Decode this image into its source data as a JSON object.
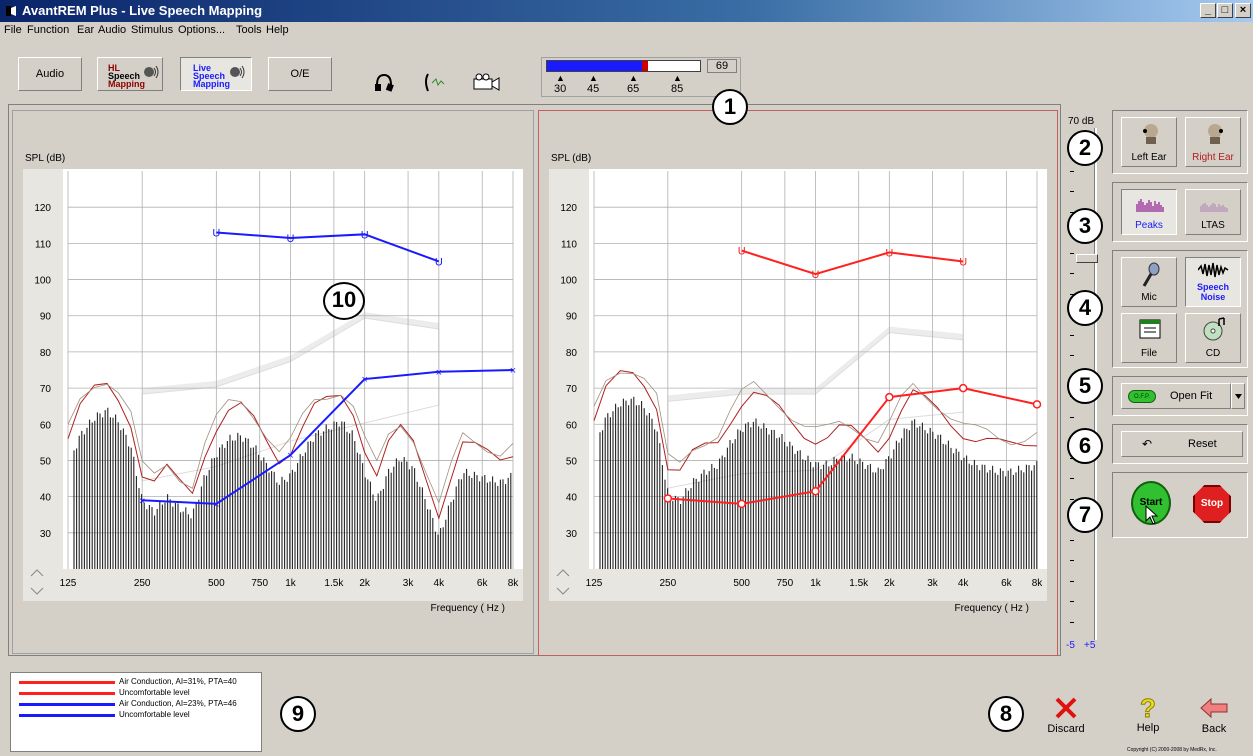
{
  "window": {
    "title": "AvantREM Plus - Live Speech Mapping",
    "btn_min": "_",
    "btn_max": "□",
    "btn_close": "×"
  },
  "menu": [
    "File",
    "Function",
    "Ear",
    "Audio",
    "Stimulus",
    "Options...",
    "Tools",
    "Help"
  ],
  "toolbar": {
    "audio": "Audio",
    "hl_a": "HL",
    "hl_b": "Speech",
    "hl_c": "Mapping",
    "live_a": "Live",
    "live_b": "Speech",
    "live_c": "Mapping",
    "oe": "O/E",
    "level_meter": {
      "value": "69",
      "fill_fraction": 0.62,
      "ticks": [
        "30",
        "45",
        "65",
        "85"
      ]
    }
  },
  "callouts": [
    "1",
    "2",
    "3",
    "4",
    "5",
    "6",
    "7",
    "8",
    "9",
    "10"
  ],
  "chart_data": [
    {
      "type": "line",
      "ylabel": "SPL (dB)",
      "xlabel": "Frequency ( Hz )",
      "x_ticks": [
        "125",
        "250",
        "500",
        "750",
        "1k",
        "1.5k",
        "2k",
        "3k",
        "4k",
        "6k",
        "8k"
      ],
      "y_ticks": [
        "120",
        "110",
        "100",
        "90",
        "80",
        "70",
        "60",
        "50",
        "40",
        "30"
      ],
      "ylim": [
        20,
        130
      ],
      "series": [
        {
          "color": "#1a1aff",
          "marker": "U",
          "x": [
            500,
            1000,
            2000,
            4000
          ],
          "y": [
            113,
            111.5,
            112.5,
            105
          ]
        },
        {
          "color": "#1a1aff",
          "marker": "x",
          "x": [
            250,
            500,
            1000,
            2000,
            4000,
            8000
          ],
          "y": [
            39,
            38,
            51.5,
            72.5,
            74.5,
            75
          ]
        }
      ],
      "speech_envelope": {
        "x": [
          250,
          500,
          1000,
          2000,
          4000
        ],
        "upper": [
          70,
          72,
          79,
          91,
          88
        ],
        "lower": [
          46,
          50,
          57,
          62,
          67
        ]
      },
      "spectrum_peaks": [
        [
          125,
          50
        ],
        [
          140,
          58
        ],
        [
          160,
          63
        ],
        [
          180,
          65
        ],
        [
          200,
          62
        ],
        [
          225,
          55
        ],
        [
          250,
          40
        ],
        [
          280,
          37
        ],
        [
          315,
          41
        ],
        [
          355,
          38
        ],
        [
          400,
          36
        ],
        [
          450,
          47
        ],
        [
          500,
          53
        ],
        [
          560,
          57
        ],
        [
          630,
          58
        ],
        [
          710,
          55
        ],
        [
          800,
          50
        ],
        [
          900,
          45
        ],
        [
          1000,
          47
        ],
        [
          1120,
          53
        ],
        [
          1250,
          58
        ],
        [
          1400,
          60
        ],
        [
          1600,
          62
        ],
        [
          1800,
          58
        ],
        [
          2000,
          48
        ],
        [
          2240,
          40
        ],
        [
          2500,
          48
        ],
        [
          2800,
          52
        ],
        [
          3150,
          49
        ],
        [
          3550,
          40
        ],
        [
          4000,
          30
        ],
        [
          4500,
          40
        ],
        [
          5000,
          48
        ],
        [
          5600,
          47
        ],
        [
          6300,
          46
        ],
        [
          7100,
          45
        ],
        [
          8000,
          47
        ]
      ]
    },
    {
      "type": "line",
      "ylabel": "SPL (dB)",
      "xlabel": "Frequency ( Hz )",
      "x_ticks": [
        "125",
        "250",
        "500",
        "750",
        "1k",
        "1.5k",
        "2k",
        "3k",
        "4k",
        "6k",
        "8k"
      ],
      "y_ticks": [
        "120",
        "110",
        "100",
        "90",
        "80",
        "70",
        "60",
        "50",
        "40",
        "30"
      ],
      "ylim": [
        20,
        130
      ],
      "series": [
        {
          "color": "#ff2020",
          "marker": "U",
          "x": [
            500,
            1000,
            2000,
            4000
          ],
          "y": [
            108,
            101.5,
            107.5,
            105
          ]
        },
        {
          "color": "#ff2020",
          "marker": "o",
          "x": [
            250,
            500,
            1000,
            2000,
            4000,
            8000
          ],
          "y": [
            39.5,
            38,
            41.5,
            67.5,
            70,
            65.5
          ]
        }
      ],
      "speech_envelope": {
        "x": [
          250,
          500,
          1000,
          2000,
          4000
        ],
        "upper": [
          68,
          70,
          70,
          87,
          85
        ],
        "lower": [
          44,
          48,
          49,
          63,
          65
        ]
      },
      "spectrum_peaks": [
        [
          125,
          55
        ],
        [
          140,
          63
        ],
        [
          160,
          67
        ],
        [
          180,
          68
        ],
        [
          200,
          66
        ],
        [
          225,
          60
        ],
        [
          250,
          42
        ],
        [
          280,
          40
        ],
        [
          315,
          45
        ],
        [
          355,
          48
        ],
        [
          400,
          50
        ],
        [
          450,
          56
        ],
        [
          500,
          60
        ],
        [
          560,
          62
        ],
        [
          630,
          60
        ],
        [
          710,
          58
        ],
        [
          800,
          55
        ],
        [
          900,
          52
        ],
        [
          1000,
          50
        ],
        [
          1120,
          50
        ],
        [
          1250,
          52
        ],
        [
          1400,
          52
        ],
        [
          1600,
          50
        ],
        [
          1800,
          48
        ],
        [
          2000,
          52
        ],
        [
          2240,
          58
        ],
        [
          2500,
          62
        ],
        [
          2800,
          60
        ],
        [
          3150,
          58
        ],
        [
          3550,
          55
        ],
        [
          4000,
          52
        ],
        [
          4500,
          50
        ],
        [
          5000,
          49
        ],
        [
          5600,
          48
        ],
        [
          6300,
          48
        ],
        [
          7100,
          49
        ],
        [
          8000,
          50
        ]
      ]
    }
  ],
  "slider": {
    "top_label": "70 dB",
    "bottom_left": "-5",
    "bottom_right": "+5"
  },
  "right_panel": {
    "left_ear": "Left Ear",
    "right_ear": "Right Ear",
    "peaks": "Peaks",
    "ltas": "LTAS",
    "mic": "Mic",
    "speech_noise_a": "Speech",
    "speech_noise_b": "Noise",
    "file": "File",
    "cd": "CD",
    "open_fit": "Open Fit",
    "of_badge": "O.F.P.",
    "reset": "Reset",
    "start": "Start",
    "stop": "Stop"
  },
  "legend": [
    {
      "color": "#ff2020",
      "text": "Air Conduction, AI=31%, PTA=40"
    },
    {
      "color": "#ff2020",
      "text": "Uncomfortable level"
    },
    {
      "color": "#1a1aff",
      "text": "Air Conduction, AI=23%, PTA=46"
    },
    {
      "color": "#1a1aff",
      "text": "Uncomfortable level"
    }
  ],
  "bottom": {
    "discard": "Discard",
    "help": "Help",
    "back": "Back",
    "copyright": "Copyright (C) 2000-2008 by MedRx, Inc."
  }
}
